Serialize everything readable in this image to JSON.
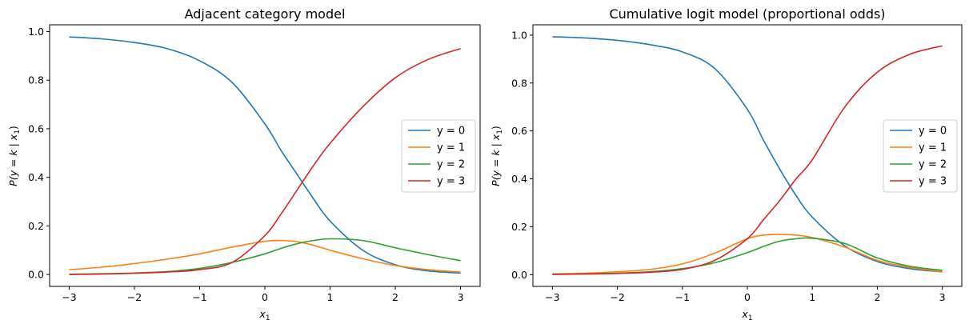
{
  "chart_data": [
    {
      "type": "line",
      "title": "Adjacent category model",
      "xlabel_main": "x",
      "xlabel_sub": "1",
      "ylabel_main": "P(y = k | x",
      "ylabel_sub": "1",
      "ylabel_close": ")",
      "xlim": [
        -3.3,
        3.3
      ],
      "ylim": [
        -0.049,
        1.028
      ],
      "xticks": [
        -3,
        -2,
        -1,
        0,
        1,
        2,
        3
      ],
      "xtick_labels": [
        "−3",
        "−2",
        "−1",
        "0",
        "1",
        "2",
        "3"
      ],
      "yticks": [
        0.0,
        0.2,
        0.4,
        0.6,
        0.8,
        1.0
      ],
      "ytick_labels": [
        "0.0",
        "0.2",
        "0.4",
        "0.6",
        "0.8",
        "1.0"
      ],
      "legend_position": "center-right",
      "x": [
        -3,
        -2.5,
        -2,
        -1.5,
        -1,
        -0.5,
        0,
        0.25,
        0.5,
        0.75,
        1,
        1.5,
        2,
        2.5,
        3
      ],
      "series": [
        {
          "name": "y = 0",
          "color": "#1f77b4",
          "values": [
            0.978,
            0.97,
            0.955,
            0.93,
            0.88,
            0.79,
            0.62,
            0.51,
            0.41,
            0.31,
            0.22,
            0.1,
            0.04,
            0.015,
            0.006
          ]
        },
        {
          "name": "y = 1",
          "color": "#ff7f0e",
          "values": [
            0.02,
            0.03,
            0.045,
            0.063,
            0.085,
            0.113,
            0.137,
            0.14,
            0.135,
            0.12,
            0.1,
            0.065,
            0.037,
            0.02,
            0.01
          ]
        },
        {
          "name": "y = 2",
          "color": "#2ca02c",
          "values": [
            0.001,
            0.003,
            0.006,
            0.012,
            0.025,
            0.05,
            0.085,
            0.108,
            0.127,
            0.14,
            0.147,
            0.14,
            0.11,
            0.082,
            0.057
          ]
        },
        {
          "name": "y = 3",
          "color": "#d62728",
          "values": [
            0.0,
            0.002,
            0.005,
            0.01,
            0.02,
            0.05,
            0.16,
            0.25,
            0.35,
            0.45,
            0.54,
            0.69,
            0.81,
            0.885,
            0.93
          ]
        }
      ]
    },
    {
      "type": "line",
      "title": "Cumulative logit model (proportional odds)",
      "xlabel_main": "x",
      "xlabel_sub": "1",
      "ylabel_main": "P(y = k | x",
      "ylabel_sub": "1",
      "ylabel_close": ")",
      "xlim": [
        -3.3,
        3.3
      ],
      "ylim": [
        -0.049,
        1.043
      ],
      "xticks": [
        -3,
        -2,
        -1,
        0,
        1,
        2,
        3
      ],
      "xtick_labels": [
        "−3",
        "−2",
        "−1",
        "0",
        "1",
        "2",
        "3"
      ],
      "yticks": [
        0.0,
        0.2,
        0.4,
        0.6,
        0.8,
        1.0
      ],
      "ytick_labels": [
        "0.0",
        "0.2",
        "0.4",
        "0.6",
        "0.8",
        "1.0"
      ],
      "legend_position": "center-right",
      "x": [
        -3,
        -2.5,
        -2,
        -1.5,
        -1,
        -0.5,
        0,
        0.25,
        0.5,
        0.75,
        1,
        1.5,
        2,
        2.5,
        3
      ],
      "series": [
        {
          "name": "y = 0",
          "color": "#1f77b4",
          "values": [
            0.993,
            0.988,
            0.978,
            0.96,
            0.93,
            0.86,
            0.69,
            0.56,
            0.44,
            0.33,
            0.24,
            0.12,
            0.055,
            0.025,
            0.012
          ]
        },
        {
          "name": "y = 1",
          "color": "#ff7f0e",
          "values": [
            0.003,
            0.006,
            0.012,
            0.022,
            0.045,
            0.09,
            0.15,
            0.165,
            0.168,
            0.165,
            0.155,
            0.115,
            0.06,
            0.03,
            0.012
          ]
        },
        {
          "name": "y = 2",
          "color": "#2ca02c",
          "values": [
            0.002,
            0.003,
            0.006,
            0.012,
            0.025,
            0.05,
            0.092,
            0.118,
            0.14,
            0.15,
            0.152,
            0.13,
            0.07,
            0.035,
            0.018
          ]
        },
        {
          "name": "y = 3",
          "color": "#d62728",
          "values": [
            0.001,
            0.003,
            0.005,
            0.01,
            0.022,
            0.06,
            0.15,
            0.23,
            0.31,
            0.4,
            0.48,
            0.7,
            0.845,
            0.92,
            0.955
          ]
        }
      ]
    }
  ]
}
